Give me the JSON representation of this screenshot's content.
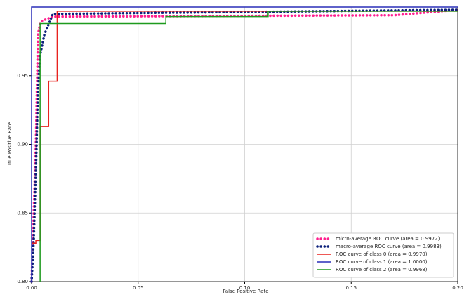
{
  "chart_data": {
    "type": "line",
    "xlabel": "False Positive Rate",
    "ylabel": "True Positive Rate",
    "xlim": [
      0,
      0.2
    ],
    "ylim": [
      0.8,
      1.0
    ],
    "xticks": [
      {
        "value": 0,
        "label": "0.00"
      },
      {
        "value": 0.05,
        "label": "0.05"
      },
      {
        "value": 0.1,
        "label": "0.10"
      },
      {
        "value": 0.15,
        "label": "0.15"
      },
      {
        "value": 0.2,
        "label": "0.20"
      }
    ],
    "yticks": [
      {
        "value": 0.8,
        "label": "0.80"
      },
      {
        "value": 0.85,
        "label": "0.85"
      },
      {
        "value": 0.9,
        "label": "0.90"
      },
      {
        "value": 0.95,
        "label": "0.95"
      }
    ],
    "grid": true,
    "legend": "lower right",
    "series": [
      {
        "name": "micro-average ROC curve (area = 0.9972)",
        "color": "#ff1f8e",
        "linestyle": "dotted",
        "x": [
          0.0,
          0.002,
          0.003,
          0.004,
          0.005,
          0.01,
          0.17,
          0.2
        ],
        "values": [
          0.8,
          0.9,
          0.98,
          0.988,
          0.99,
          0.993,
          0.994,
          0.998
        ]
      },
      {
        "name": "macro-average ROC curve (area = 0.9983)",
        "color": "#0a1f7a",
        "linestyle": "dotted",
        "x": [
          0.0,
          0.001,
          0.002,
          0.003,
          0.004,
          0.006,
          0.01,
          0.2
        ],
        "values": [
          0.8,
          0.83,
          0.88,
          0.94,
          0.965,
          0.98,
          0.995,
          0.998
        ]
      },
      {
        "name": "ROC curve of class 0 (area = 0.9970)",
        "color": "#e8221f",
        "linestyle": "solid",
        "x": [
          0.0,
          0.002,
          0.002,
          0.004,
          0.004,
          0.008,
          0.008,
          0.012,
          0.012,
          0.2
        ],
        "values": [
          0.828,
          0.828,
          0.83,
          0.83,
          0.913,
          0.913,
          0.946,
          0.946,
          0.997,
          0.997
        ]
      },
      {
        "name": "ROC curve of class 1 (area = 1.0000)",
        "color": "#2a2fb8",
        "linestyle": "solid",
        "x": [
          0.0,
          0.0,
          0.2
        ],
        "values": [
          0.8,
          1.0,
          1.0
        ]
      },
      {
        "name": "ROC curve of class 2 (area = 0.9968)",
        "color": "#1e9a1e",
        "linestyle": "solid",
        "x": [
          0.004,
          0.004,
          0.063,
          0.063,
          0.111,
          0.111,
          0.2
        ],
        "values": [
          0.8,
          0.988,
          0.988,
          0.993,
          0.993,
          0.997,
          0.997
        ]
      }
    ]
  }
}
